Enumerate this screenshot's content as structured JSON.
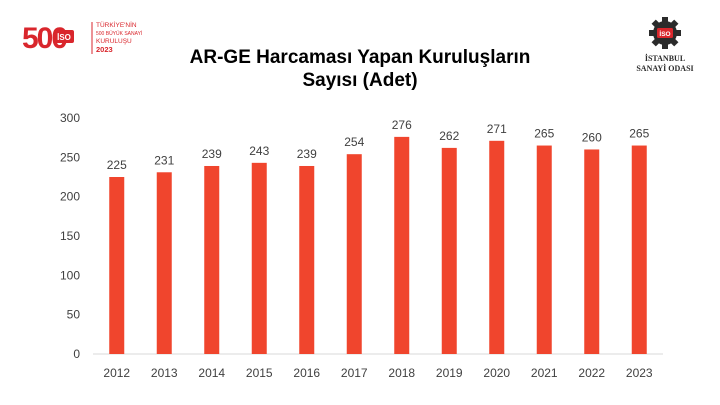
{
  "brand_left": {
    "number": "500",
    "lines": [
      "TÜRKİYE'NİN",
      "500 BÜYÜK SANAYİ",
      "KURULUŞU"
    ],
    "year": "2023",
    "badge": "İSO"
  },
  "brand_right": {
    "badge": "İSO",
    "line1": "İSTANBUL",
    "line2": "SANAYİ ODASI"
  },
  "colors": {
    "bar": "#f0452d",
    "brand_red": "#d9262c",
    "gear": "#2b2b2b"
  },
  "chart_data": {
    "type": "bar",
    "title_lines": [
      "AR-GE Harcaması Yapan Kuruluşların",
      "Sayısı (Adet)"
    ],
    "categories": [
      "2012",
      "2013",
      "2014",
      "2015",
      "2016",
      "2017",
      "2018",
      "2019",
      "2020",
      "2021",
      "2022",
      "2023"
    ],
    "values": [
      225,
      231,
      239,
      243,
      239,
      254,
      276,
      262,
      271,
      265,
      260,
      265
    ],
    "ylim": [
      0,
      300
    ],
    "yticks": [
      0,
      50,
      100,
      150,
      200,
      250,
      300
    ],
    "grid": false,
    "data_labels": true,
    "xlabel": "",
    "ylabel": ""
  }
}
